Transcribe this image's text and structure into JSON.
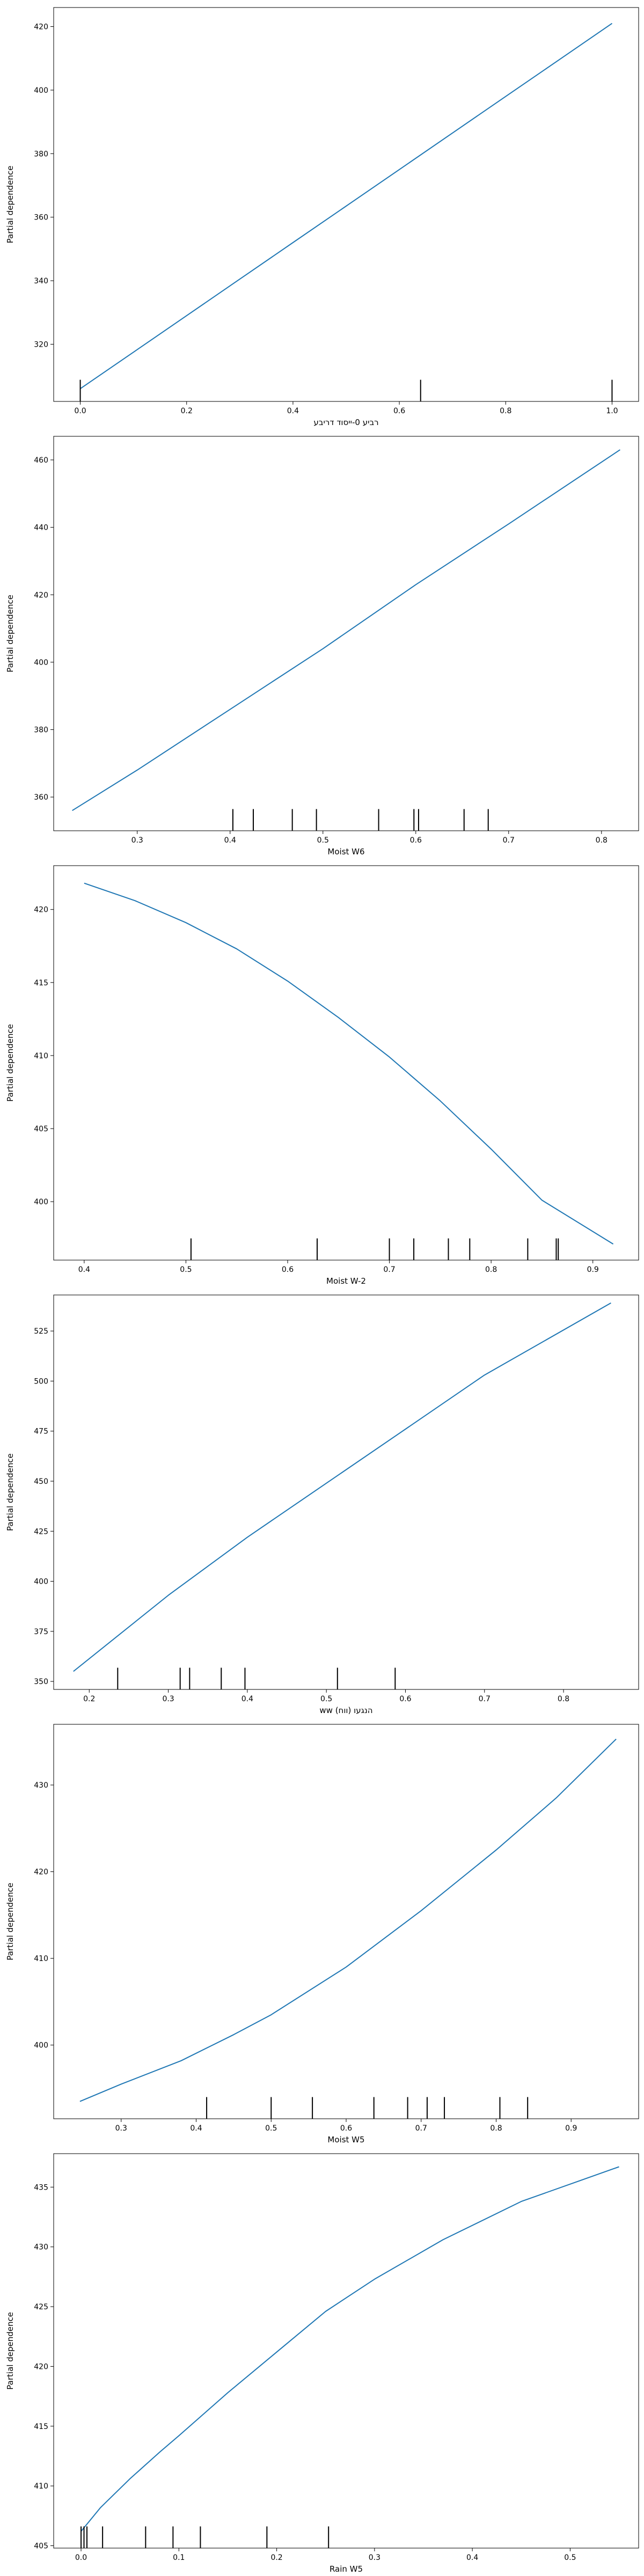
{
  "chart_data": [
    {
      "type": "line",
      "ylabel": "Partial dependence",
      "xlabel": "רביע 0-ייסוד דריבע",
      "xlim": [
        -0.05,
        1.05
      ],
      "ylim": [
        302,
        426
      ],
      "xticks": [
        "0.0",
        "0.2",
        "0.4",
        "0.6",
        "0.8",
        "1.0"
      ],
      "xtick_values": [
        0.0,
        0.2,
        0.4,
        0.6,
        0.8,
        1.0
      ],
      "yticks": [
        "320",
        "340",
        "360",
        "380",
        "400",
        "420"
      ],
      "ytick_values": [
        320,
        340,
        360,
        380,
        400,
        420
      ],
      "x": [
        0.0,
        0.1,
        0.2,
        0.3,
        0.4,
        0.5,
        0.6,
        0.7,
        0.8,
        0.9,
        1.0
      ],
      "y": [
        306,
        317.5,
        329,
        340.5,
        352,
        363.5,
        375,
        386.5,
        398,
        409.5,
        421
      ],
      "deciles": [
        0.0,
        0.64,
        1.0
      ],
      "line_color": "#1f77b4"
    },
    {
      "type": "line",
      "ylabel": "Partial dependence",
      "xlabel": "Moist W6",
      "xlim": [
        0.21,
        0.84
      ],
      "ylim": [
        350,
        467
      ],
      "xticks": [
        "0.3",
        "0.4",
        "0.5",
        "0.6",
        "0.7",
        "0.8"
      ],
      "xtick_values": [
        0.3,
        0.4,
        0.5,
        0.6,
        0.7,
        0.8
      ],
      "yticks": [
        "360",
        "380",
        "400",
        "420",
        "440",
        "460"
      ],
      "ytick_values": [
        360,
        380,
        400,
        420,
        440,
        460
      ],
      "x": [
        0.23,
        0.3,
        0.4,
        0.5,
        0.6,
        0.7,
        0.82
      ],
      "y": [
        356,
        368,
        386,
        404,
        423,
        441,
        463
      ],
      "deciles": [
        0.403,
        0.425,
        0.467,
        0.493,
        0.56,
        0.598,
        0.603,
        0.652,
        0.678
      ],
      "line_color": "#1f77b4"
    },
    {
      "type": "line",
      "ylabel": "Partial dependence",
      "xlabel": "Moist W-2",
      "xlim": [
        0.37,
        0.945
      ],
      "ylim": [
        396,
        423
      ],
      "xticks": [
        "0.4",
        "0.5",
        "0.6",
        "0.7",
        "0.8",
        "0.9"
      ],
      "xtick_values": [
        0.4,
        0.5,
        0.6,
        0.7,
        0.8,
        0.9
      ],
      "yticks": [
        "400",
        "405",
        "410",
        "415",
        "420"
      ],
      "ytick_values": [
        400,
        405,
        410,
        415,
        420
      ],
      "x": [
        0.4,
        0.45,
        0.5,
        0.55,
        0.6,
        0.65,
        0.7,
        0.75,
        0.8,
        0.85,
        0.92
      ],
      "y": [
        421.8,
        420.6,
        419.1,
        417.3,
        415.1,
        412.6,
        409.9,
        406.9,
        403.6,
        400.1,
        397.1
      ],
      "deciles": [
        0.505,
        0.629,
        0.7,
        0.724,
        0.758,
        0.779,
        0.836,
        0.864,
        0.866
      ],
      "line_color": "#1f77b4"
    },
    {
      "type": "line",
      "ylabel": "Partial dependence",
      "xlabel": "ww הנגעו (ווח)",
      "xlim": [
        0.155,
        0.895
      ],
      "ylim": [
        346,
        543
      ],
      "xticks": [
        "0.2",
        "0.3",
        "0.4",
        "0.5",
        "0.6",
        "0.7",
        "0.8"
      ],
      "xtick_values": [
        0.2,
        0.3,
        0.4,
        0.5,
        0.6,
        0.7,
        0.8
      ],
      "yticks": [
        "350",
        "375",
        "400",
        "425",
        "450",
        "475",
        "500",
        "525"
      ],
      "ytick_values": [
        350,
        375,
        400,
        425,
        450,
        475,
        500,
        525
      ],
      "x": [
        0.18,
        0.3,
        0.4,
        0.5,
        0.6,
        0.7,
        0.86
      ],
      "y": [
        355,
        393,
        422,
        449,
        476,
        503,
        539
      ],
      "deciles": [
        0.236,
        0.315,
        0.327,
        0.367,
        0.397,
        0.514,
        0.587
      ],
      "line_color": "#1f77b4"
    },
    {
      "type": "line",
      "ylabel": "Partial dependence",
      "xlabel": "Moist W5",
      "xlim": [
        0.21,
        0.99
      ],
      "ylim": [
        391.5,
        437
      ],
      "xticks": [
        "0.3",
        "0.4",
        "0.5",
        "0.6",
        "0.7",
        "0.8",
        "0.9"
      ],
      "xtick_values": [
        0.3,
        0.4,
        0.5,
        0.6,
        0.7,
        0.8,
        0.9
      ],
      "yticks": [
        "400",
        "410",
        "420",
        "430"
      ],
      "ytick_values": [
        400,
        410,
        420,
        430
      ],
      "x": [
        0.245,
        0.3,
        0.38,
        0.45,
        0.5,
        0.6,
        0.7,
        0.8,
        0.88,
        0.96
      ],
      "y": [
        393.5,
        395.5,
        398.2,
        401.2,
        403.5,
        409.0,
        415.5,
        422.5,
        428.5,
        435.3
      ],
      "deciles": [
        0.414,
        0.5,
        0.555,
        0.637,
        0.682,
        0.708,
        0.731,
        0.805,
        0.842
      ],
      "line_color": "#1f77b4"
    },
    {
      "type": "line",
      "ylabel": "Partial dependence",
      "xlabel": "Rain W5",
      "xlim": [
        -0.028,
        0.57
      ],
      "ylim": [
        404.8,
        437.8
      ],
      "xticks": [
        "0.0",
        "0.1",
        "0.2",
        "0.3",
        "0.4",
        "0.5"
      ],
      "xtick_values": [
        0.0,
        0.1,
        0.2,
        0.3,
        0.4,
        0.5
      ],
      "yticks": [
        "405",
        "410",
        "415",
        "420",
        "425",
        "430",
        "435"
      ],
      "ytick_values": [
        405,
        410,
        415,
        420,
        425,
        430,
        435
      ],
      "x": [
        0.0,
        0.02,
        0.05,
        0.08,
        0.1,
        0.15,
        0.2,
        0.25,
        0.3,
        0.37,
        0.45,
        0.55
      ],
      "y": [
        406.2,
        408.2,
        410.6,
        412.8,
        414.2,
        417.8,
        421.2,
        424.6,
        427.3,
        430.6,
        433.8,
        436.7
      ],
      "deciles": [
        0.0,
        0.003,
        0.006,
        0.022,
        0.066,
        0.094,
        0.122,
        0.19,
        0.253
      ],
      "line_color": "#1f77b4"
    }
  ]
}
